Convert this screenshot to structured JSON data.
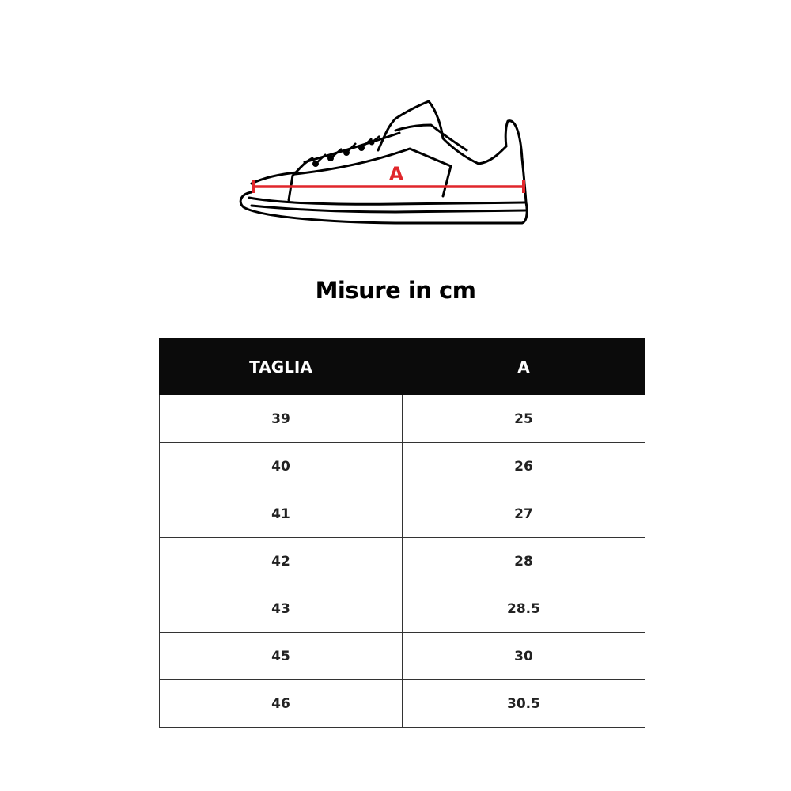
{
  "diagram": {
    "measure_label": "A",
    "measure_color": "#e0262b"
  },
  "title": "Misure in cm",
  "table": {
    "headers": [
      "TAGLIA",
      "A"
    ],
    "rows": [
      [
        "39",
        "25"
      ],
      [
        "40",
        "26"
      ],
      [
        "41",
        "27"
      ],
      [
        "42",
        "28"
      ],
      [
        "43",
        "28.5"
      ],
      [
        "45",
        "30"
      ],
      [
        "46",
        "30.5"
      ]
    ]
  }
}
